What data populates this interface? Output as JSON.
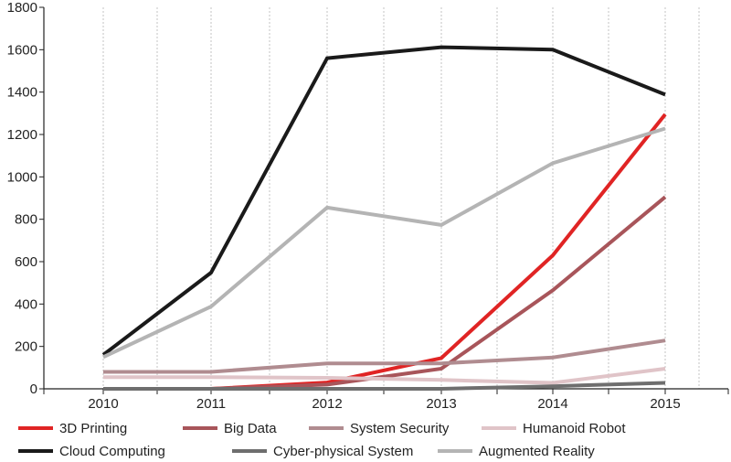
{
  "chart_data": {
    "type": "line",
    "title": "",
    "xlabel": "",
    "ylabel": "",
    "categories": [
      "2010",
      "2011",
      "2012",
      "2013",
      "2014",
      "2015"
    ],
    "ylim": [
      0,
      1800
    ],
    "yticks": [
      "0",
      "200",
      "400",
      "600",
      "800",
      "1000",
      "1200",
      "1400",
      "1600",
      "1800"
    ],
    "grid": "vertical dashed",
    "legend_position": "bottom",
    "series": [
      {
        "name": "3D Printing",
        "color": "#e02424",
        "values": [
          0,
          0,
          30,
          145,
          630,
          1295
        ]
      },
      {
        "name": "Big Data",
        "color": "#a8555a",
        "values": [
          0,
          0,
          20,
          95,
          465,
          905
        ]
      },
      {
        "name": "System Security",
        "color": "#b08c90",
        "values": [
          80,
          80,
          120,
          120,
          148,
          228
        ]
      },
      {
        "name": "Humanoid Robot",
        "color": "#e0c4c8",
        "values": [
          55,
          55,
          52,
          42,
          28,
          95
        ]
      },
      {
        "name": "Cloud Computing",
        "color": "#1a1a1a",
        "values": [
          160,
          548,
          1560,
          1612,
          1600,
          1388
        ]
      },
      {
        "name": "Cyber-physical System",
        "color": "#6e6e6e",
        "values": [
          0,
          0,
          0,
          0,
          12,
          28
        ]
      },
      {
        "name": "Augmented Reality",
        "color": "#b4b4b4",
        "values": [
          150,
          388,
          855,
          773,
          1065,
          1228
        ]
      }
    ]
  }
}
